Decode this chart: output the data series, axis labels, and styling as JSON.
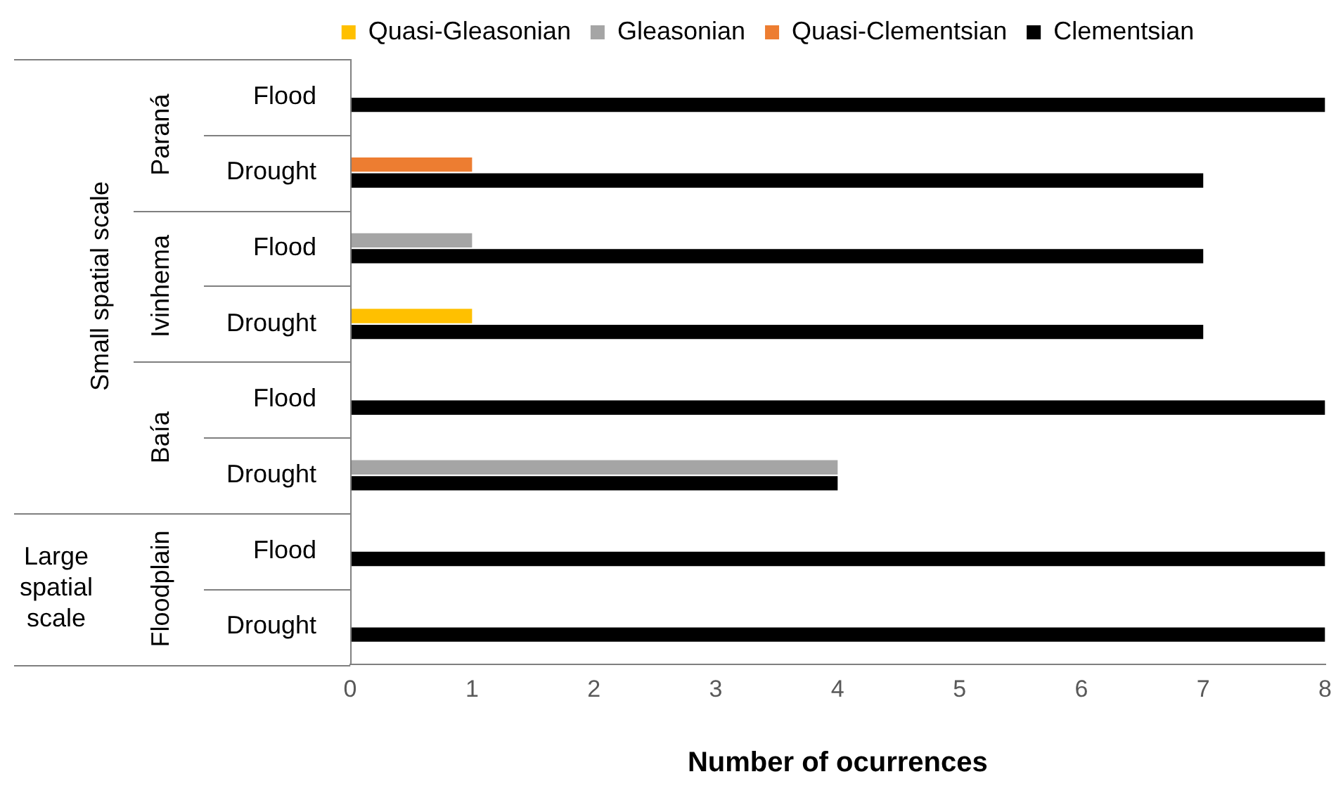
{
  "chart_data": {
    "type": "bar",
    "orientation": "horizontal",
    "categories": [
      "Flood",
      "Drought",
      "Flood",
      "Drought",
      "Flood",
      "Drought",
      "Flood",
      "Drought"
    ],
    "series": [
      {
        "name": "Quasi-Gleasonian",
        "color": "#ffc000",
        "values": [
          null,
          null,
          null,
          1,
          null,
          null,
          null,
          null
        ]
      },
      {
        "name": "Gleasonian",
        "color": "#a5a5a5",
        "values": [
          null,
          null,
          1,
          null,
          null,
          4,
          null,
          null
        ]
      },
      {
        "name": "Quasi-Clementsian",
        "color": "#ed7d31",
        "values": [
          null,
          1,
          null,
          null,
          null,
          null,
          null,
          null
        ]
      },
      {
        "name": "Clementsian",
        "color": "#000000",
        "values": [
          8,
          7,
          7,
          7,
          8,
          4,
          8,
          8
        ]
      }
    ],
    "xlim": [
      0,
      8
    ],
    "xticks": [
      0,
      1,
      2,
      3,
      4,
      5,
      6,
      7,
      8
    ],
    "xlabel": "Number of ocurrences",
    "legend": "top",
    "grid": false,
    "annotations": [
      "Paraná",
      "Ivinhema",
      "Baía",
      "Floodplain",
      "Small spatial scale",
      "Large spatial scale"
    ]
  }
}
